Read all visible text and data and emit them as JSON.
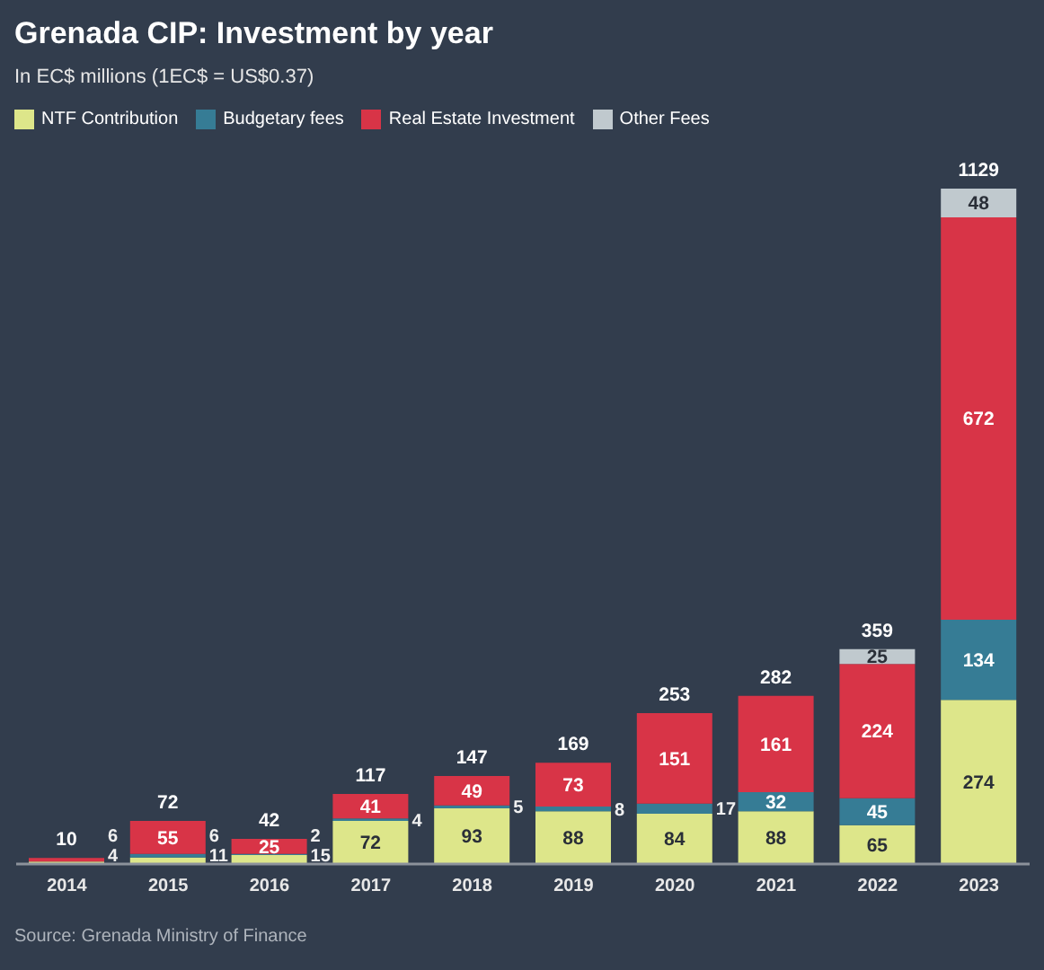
{
  "chart_data": {
    "type": "bar",
    "title": "Grenada CIP: Investment by year",
    "subtitle": "In EC$ millions (1EC$ = US$0.37)",
    "categories": [
      "2014",
      "2015",
      "2016",
      "2017",
      "2018",
      "2019",
      "2020",
      "2021",
      "2022",
      "2023"
    ],
    "stacked": true,
    "series": [
      {
        "name": "NTF Contribution",
        "color": "#dde68a",
        "values": [
          4,
          11,
          15,
          72,
          93,
          88,
          84,
          88,
          65,
          274
        ]
      },
      {
        "name": "Budgetary fees",
        "color": "#367c95",
        "values": [
          null,
          6,
          2,
          4,
          5,
          8,
          17,
          32,
          45,
          134
        ]
      },
      {
        "name": "Real Estate Investment",
        "color": "#d83447",
        "values": [
          6,
          55,
          25,
          41,
          49,
          73,
          151,
          161,
          224,
          672
        ]
      },
      {
        "name": "Other Fees",
        "color": "#c0c9ce",
        "values": [
          null,
          null,
          null,
          null,
          null,
          null,
          null,
          null,
          25,
          48
        ]
      }
    ],
    "data_labels": true,
    "totals": [
      "10",
      "72",
      "42",
      "117",
      "147",
      "169",
      "253",
      "282",
      "359",
      "1129"
    ],
    "legend": "top left",
    "tick_labels": "x",
    "annotations": [
      "Source: Grenada Ministry of Finance"
    ]
  }
}
